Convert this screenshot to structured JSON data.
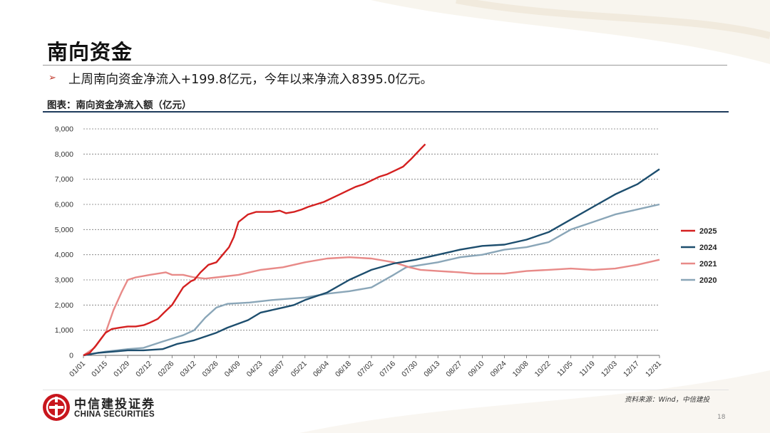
{
  "slide": {
    "title": "南向资金",
    "bullet": "上周南向资金净流入+199.8亿元，今年以来净流入8395.0亿元。",
    "caption": "图表：南向资金净流入额（亿元）",
    "source": "资料来源：Wind，中信建投",
    "page_number": "18"
  },
  "logo": {
    "name_cn": "中信建投证券",
    "name_en": "CHINA SECURITIES"
  },
  "colors": {
    "accent": "#c0392b",
    "rule": "#1f3b5c"
  },
  "chart_data": {
    "type": "line",
    "title": "",
    "xlabel": "",
    "ylabel": "",
    "ylim": [
      0,
      9000
    ],
    "yticks": [
      0,
      1000,
      2000,
      3000,
      4000,
      5000,
      6000,
      7000,
      8000,
      9000
    ],
    "ytick_labels": [
      "0",
      "1,000",
      "2,000",
      "3,000",
      "4,000",
      "5,000",
      "6,000",
      "7,000",
      "8,000",
      "9,000"
    ],
    "xlim": [
      "01/01",
      "12/31"
    ],
    "xticks": [
      "01/01",
      "01/15",
      "01/29",
      "02/12",
      "02/26",
      "03/12",
      "03/26",
      "04/09",
      "04/23",
      "05/07",
      "05/21",
      "06/04",
      "06/18",
      "07/02",
      "07/16",
      "07/30",
      "08/13",
      "08/27",
      "09/10",
      "09/24",
      "10/08",
      "10/22",
      "11/05",
      "11/19",
      "12/03",
      "12/17",
      "12/31"
    ],
    "grid": "horizontal dashed",
    "legend": "right",
    "series": [
      {
        "name": "2025",
        "color": "#d42020",
        "points": [
          [
            "01/01",
            0
          ],
          [
            "01/05",
            100
          ],
          [
            "01/09",
            400
          ],
          [
            "01/12",
            650
          ],
          [
            "01/15",
            900
          ],
          [
            "01/19",
            1050
          ],
          [
            "01/24",
            1100
          ],
          [
            "01/29",
            1150
          ],
          [
            "02/03",
            1150
          ],
          [
            "02/08",
            1200
          ],
          [
            "02/12",
            1300
          ],
          [
            "02/17",
            1450
          ],
          [
            "02/21",
            1700
          ],
          [
            "02/26",
            2000
          ],
          [
            "03/01",
            2300
          ],
          [
            "03/05",
            2700
          ],
          [
            "03/10",
            2950
          ],
          [
            "03/12",
            3000
          ],
          [
            "03/16",
            3300
          ],
          [
            "03/21",
            3600
          ],
          [
            "03/26",
            3700
          ],
          [
            "03/30",
            4000
          ],
          [
            "04/03",
            4300
          ],
          [
            "04/06",
            4700
          ],
          [
            "04/09",
            5300
          ],
          [
            "04/11",
            5400
          ],
          [
            "04/15",
            5600
          ],
          [
            "04/20",
            5700
          ],
          [
            "04/25",
            5700
          ],
          [
            "04/30",
            5700
          ],
          [
            "05/05",
            5750
          ],
          [
            "05/09",
            5650
          ],
          [
            "05/14",
            5700
          ],
          [
            "05/19",
            5800
          ],
          [
            "05/23",
            5900
          ],
          [
            "05/28",
            6000
          ],
          [
            "06/02",
            6100
          ],
          [
            "06/07",
            6250
          ],
          [
            "06/12",
            6400
          ],
          [
            "06/17",
            6550
          ],
          [
            "06/22",
            6700
          ],
          [
            "06/27",
            6800
          ],
          [
            "07/02",
            6950
          ],
          [
            "07/07",
            7100
          ],
          [
            "07/12",
            7200
          ],
          [
            "07/17",
            7350
          ],
          [
            "07/22",
            7500
          ],
          [
            "07/27",
            7800
          ],
          [
            "07/30",
            8000
          ],
          [
            "08/02",
            8200
          ],
          [
            "08/05",
            8395
          ]
        ]
      },
      {
        "name": "2024",
        "color": "#1d4e6e",
        "points": [
          [
            "01/01",
            0
          ],
          [
            "01/10",
            100
          ],
          [
            "01/20",
            150
          ],
          [
            "01/29",
            200
          ],
          [
            "02/08",
            200
          ],
          [
            "02/20",
            250
          ],
          [
            "03/01",
            450
          ],
          [
            "03/12",
            600
          ],
          [
            "03/26",
            900
          ],
          [
            "04/02",
            1100
          ],
          [
            "04/15",
            1400
          ],
          [
            "04/23",
            1700
          ],
          [
            "05/07",
            1900
          ],
          [
            "05/14",
            2000
          ],
          [
            "05/21",
            2200
          ],
          [
            "06/04",
            2500
          ],
          [
            "06/18",
            3000
          ],
          [
            "07/02",
            3400
          ],
          [
            "07/16",
            3650
          ],
          [
            "07/30",
            3800
          ],
          [
            "08/13",
            4000
          ],
          [
            "08/27",
            4200
          ],
          [
            "09/10",
            4350
          ],
          [
            "09/24",
            4400
          ],
          [
            "10/08",
            4600
          ],
          [
            "10/22",
            4900
          ],
          [
            "11/05",
            5400
          ],
          [
            "11/19",
            5900
          ],
          [
            "12/03",
            6400
          ],
          [
            "12/17",
            6800
          ],
          [
            "12/31",
            7400
          ]
        ]
      },
      {
        "name": "2021",
        "color": "#e88a88",
        "points": [
          [
            "01/01",
            0
          ],
          [
            "01/08",
            300
          ],
          [
            "01/15",
            900
          ],
          [
            "01/20",
            1800
          ],
          [
            "01/25",
            2500
          ],
          [
            "01/29",
            3000
          ],
          [
            "02/03",
            3100
          ],
          [
            "02/12",
            3200
          ],
          [
            "02/22",
            3300
          ],
          [
            "02/26",
            3200
          ],
          [
            "03/05",
            3200
          ],
          [
            "03/12",
            3100
          ],
          [
            "03/19",
            3050
          ],
          [
            "03/26",
            3100
          ],
          [
            "04/09",
            3200
          ],
          [
            "04/23",
            3400
          ],
          [
            "05/07",
            3500
          ],
          [
            "05/21",
            3700
          ],
          [
            "06/04",
            3850
          ],
          [
            "06/18",
            3900
          ],
          [
            "07/02",
            3850
          ],
          [
            "07/16",
            3700
          ],
          [
            "07/26",
            3500
          ],
          [
            "08/02",
            3400
          ],
          [
            "08/13",
            3350
          ],
          [
            "08/27",
            3300
          ],
          [
            "09/05",
            3250
          ],
          [
            "09/24",
            3250
          ],
          [
            "10/08",
            3350
          ],
          [
            "10/22",
            3400
          ],
          [
            "11/05",
            3450
          ],
          [
            "11/19",
            3400
          ],
          [
            "12/03",
            3450
          ],
          [
            "12/17",
            3600
          ],
          [
            "12/31",
            3800
          ]
        ]
      },
      {
        "name": "2020",
        "color": "#8aa6b8",
        "points": [
          [
            "01/01",
            0
          ],
          [
            "01/15",
            150
          ],
          [
            "01/29",
            250
          ],
          [
            "02/08",
            300
          ],
          [
            "02/20",
            550
          ],
          [
            "03/05",
            800
          ],
          [
            "03/12",
            1000
          ],
          [
            "03/19",
            1500
          ],
          [
            "03/26",
            1900
          ],
          [
            "04/02",
            2050
          ],
          [
            "04/16",
            2100
          ],
          [
            "04/30",
            2200
          ],
          [
            "05/21",
            2300
          ],
          [
            "06/04",
            2450
          ],
          [
            "06/18",
            2550
          ],
          [
            "07/02",
            2700
          ],
          [
            "07/16",
            3200
          ],
          [
            "07/24",
            3500
          ],
          [
            "08/13",
            3700
          ],
          [
            "08/27",
            3900
          ],
          [
            "09/10",
            4000
          ],
          [
            "09/24",
            4200
          ],
          [
            "10/08",
            4300
          ],
          [
            "10/22",
            4500
          ],
          [
            "11/05",
            5000
          ],
          [
            "11/19",
            5300
          ],
          [
            "12/03",
            5600
          ],
          [
            "12/17",
            5800
          ],
          [
            "12/31",
            6000
          ]
        ]
      }
    ]
  }
}
